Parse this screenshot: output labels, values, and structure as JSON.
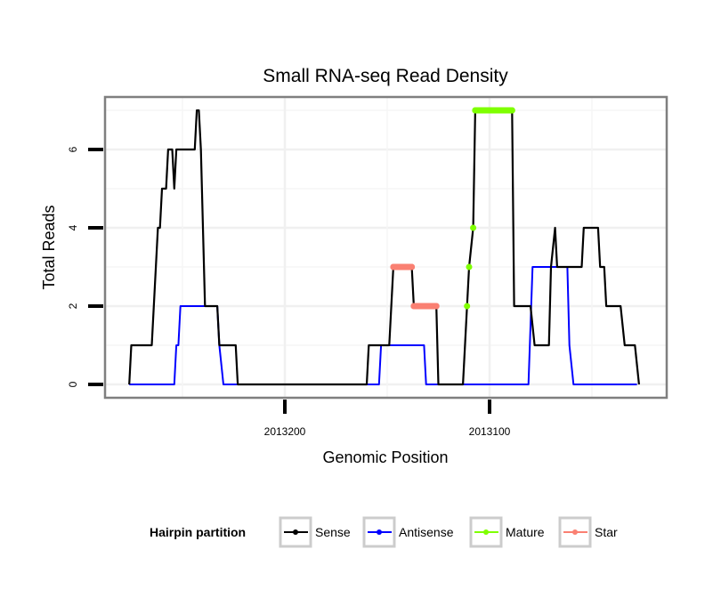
{
  "chart_data": {
    "type": "line",
    "title": "Small RNA-seq Read Density",
    "xlabel": "Genomic Position",
    "ylabel": "Total Reads",
    "x_reversed": true,
    "xlim": [
      2013289,
      2013014
    ],
    "ylim": [
      -0.35,
      7.35
    ],
    "xticks": [
      {
        "value": 2013200,
        "label": "2013200"
      },
      {
        "value": 2013100,
        "label": "2013100"
      }
    ],
    "yticks": [
      {
        "value": 0,
        "label": "0"
      },
      {
        "value": 2,
        "label": "2"
      },
      {
        "value": 4,
        "label": "4"
      },
      {
        "value": 6,
        "label": "6"
      }
    ],
    "grid": true,
    "legend": {
      "title": "Hairpin partition",
      "placement": "bottom",
      "entries": [
        {
          "name": "Sense",
          "color": "#000000"
        },
        {
          "name": "Antisense",
          "color": "#0000ff"
        },
        {
          "name": "Mature",
          "color": "#7fff00"
        },
        {
          "name": "Star",
          "color": "#fa8072"
        }
      ]
    },
    "series": [
      {
        "name": "Sense",
        "color": "#000000",
        "points": [
          [
            2013276,
            0
          ],
          [
            2013275,
            1
          ],
          [
            2013265,
            1
          ],
          [
            2013262,
            4
          ],
          [
            2013261,
            4
          ],
          [
            2013260,
            5
          ],
          [
            2013258,
            5
          ],
          [
            2013257,
            6
          ],
          [
            2013255,
            6
          ],
          [
            2013254,
            5
          ],
          [
            2013253,
            6
          ],
          [
            2013244,
            6
          ],
          [
            2013243,
            7
          ],
          [
            2013242,
            7
          ],
          [
            2013241,
            6
          ],
          [
            2013239,
            2
          ],
          [
            2013233,
            2
          ],
          [
            2013232,
            1
          ],
          [
            2013224,
            1
          ],
          [
            2013223,
            0
          ],
          [
            2013160,
            0
          ],
          [
            2013159,
            1
          ],
          [
            2013149,
            1
          ],
          [
            2013147,
            3
          ],
          [
            2013138,
            3
          ],
          [
            2013137,
            2
          ],
          [
            2013126,
            2
          ],
          [
            2013125,
            0
          ],
          [
            2013113,
            0
          ],
          [
            2013111,
            2
          ],
          [
            2013110,
            3
          ],
          [
            2013108,
            4
          ],
          [
            2013107,
            7
          ],
          [
            2013089,
            7
          ],
          [
            2013088,
            2
          ],
          [
            2013080,
            2
          ],
          [
            2013078,
            1
          ],
          [
            2013071,
            1
          ],
          [
            2013070,
            3
          ],
          [
            2013068,
            4
          ],
          [
            2013067,
            3
          ],
          [
            2013055,
            3
          ],
          [
            2013054,
            4
          ],
          [
            2013047,
            4
          ],
          [
            2013046,
            3
          ],
          [
            2013044,
            3
          ],
          [
            2013043,
            2
          ],
          [
            2013036,
            2
          ],
          [
            2013034,
            1
          ],
          [
            2013029,
            1
          ],
          [
            2013027,
            0
          ]
        ]
      },
      {
        "name": "Antisense",
        "color": "#0000ff",
        "points": [
          [
            2013276,
            0
          ],
          [
            2013254,
            0
          ],
          [
            2013253,
            1
          ],
          [
            2013252,
            1
          ],
          [
            2013251,
            2
          ],
          [
            2013233,
            2
          ],
          [
            2013232,
            1
          ],
          [
            2013230,
            0
          ],
          [
            2013154,
            0
          ],
          [
            2013153,
            1
          ],
          [
            2013132,
            1
          ],
          [
            2013131,
            0
          ],
          [
            2013081,
            0
          ],
          [
            2013079,
            3
          ],
          [
            2013062,
            3
          ],
          [
            2013061,
            1
          ],
          [
            2013059,
            0
          ],
          [
            2013028,
            0
          ]
        ]
      },
      {
        "name": "Mature",
        "color": "#7fff00",
        "points": [
          [
            2013111,
            2
          ],
          [
            2013110,
            3
          ],
          [
            2013108,
            4
          ],
          [
            2013107,
            7
          ],
          [
            2013106,
            7
          ],
          [
            2013105,
            7
          ],
          [
            2013104,
            7
          ],
          [
            2013103,
            7
          ],
          [
            2013102,
            7
          ],
          [
            2013101,
            7
          ],
          [
            2013100,
            7
          ],
          [
            2013099,
            7
          ],
          [
            2013098,
            7
          ],
          [
            2013097,
            7
          ],
          [
            2013096,
            7
          ],
          [
            2013095,
            7
          ],
          [
            2013094,
            7
          ],
          [
            2013093,
            7
          ],
          [
            2013092,
            7
          ],
          [
            2013091,
            7
          ],
          [
            2013090,
            7
          ],
          [
            2013089,
            7
          ]
        ]
      },
      {
        "name": "Star",
        "color": "#fa8072",
        "segments": [
          [
            [
              2013147,
              3
            ],
            [
              2013146,
              3
            ],
            [
              2013145,
              3
            ],
            [
              2013144,
              3
            ],
            [
              2013143,
              3
            ],
            [
              2013142,
              3
            ],
            [
              2013141,
              3
            ],
            [
              2013140,
              3
            ],
            [
              2013139,
              3
            ],
            [
              2013138,
              3
            ]
          ],
          [
            [
              2013137,
              2
            ],
            [
              2013136,
              2
            ],
            [
              2013135,
              2
            ],
            [
              2013134,
              2
            ],
            [
              2013133,
              2
            ],
            [
              2013132,
              2
            ],
            [
              2013131,
              2
            ],
            [
              2013130,
              2
            ],
            [
              2013129,
              2
            ],
            [
              2013128,
              2
            ],
            [
              2013127,
              2
            ],
            [
              2013126,
              2
            ]
          ]
        ]
      }
    ]
  }
}
